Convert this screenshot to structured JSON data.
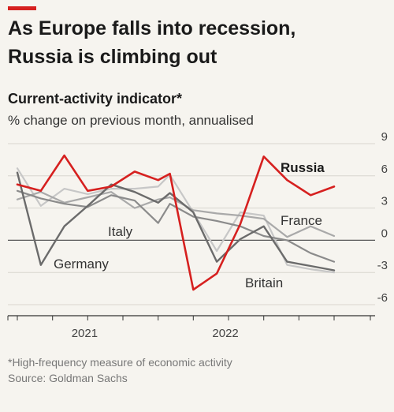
{
  "header": {
    "title_line1": "As Europe falls into recession,",
    "title_line2": "Russia is climbing out",
    "subtitle": "Current-activity indicator*",
    "subtitle2": "% change on previous month, annualised"
  },
  "footer": {
    "footnote": "*High-frequency measure of economic activity",
    "source": "Source: Goldman Sachs"
  },
  "colors": {
    "russia": "#d6201f",
    "germany": "#6b6b6b",
    "italy": "#8b8b8b",
    "france": "#a9a9a9",
    "britain": "#c7c7c7",
    "accent": "#d6201f"
  },
  "chart_data": {
    "type": "line",
    "x": [
      "2020-08",
      "2020-09",
      "2020-10",
      "2020-11",
      "2020-12",
      "2021-01",
      "2021-02",
      "2021-03",
      "2021-04",
      "2021-05",
      "2021-06",
      "2021-07",
      "2021-08",
      "2021-09",
      "2021-10",
      "2021-11",
      "2021-12",
      "2022-01",
      "2022-02",
      "2022-03",
      "2022-04",
      "2022-05",
      "2022-06",
      "2022-07",
      "2022-08",
      "2022-09",
      "2022-10",
      "2022-11"
    ],
    "x_tick_labels": [
      "2021",
      "2022"
    ],
    "y_tick_labels": [
      "9",
      "6",
      "3",
      "0",
      "-3",
      "-6"
    ],
    "ylim": [
      -6,
      9
    ],
    "series": [
      {
        "name": "Russia",
        "values": [
          5.2,
          null,
          4.6,
          null,
          7.9,
          null,
          4.6,
          null,
          5.0,
          null,
          6.4,
          null,
          5.6,
          6.2,
          null,
          -4.6,
          null,
          -3.1,
          null,
          1.5,
          null,
          7.8,
          null,
          5.6,
          null,
          4.2,
          null,
          5.0
        ]
      },
      {
        "name": "Germany",
        "values": [
          6.3,
          null,
          -2.3,
          null,
          1.3,
          null,
          3.2,
          null,
          5.2,
          null,
          4.5,
          null,
          3.5,
          4.4,
          null,
          2.6,
          null,
          -2.0,
          null,
          0.1,
          null,
          1.3,
          null,
          -2.0,
          null,
          -2.4,
          null,
          -2.8
        ]
      },
      {
        "name": "Italy",
        "values": [
          4.6,
          null,
          3.9,
          null,
          3.4,
          null,
          3.1,
          null,
          4.2,
          null,
          3.7,
          null,
          1.6,
          3.4,
          null,
          2.2,
          null,
          1.8,
          null,
          1.3,
          null,
          0.4,
          null,
          0.0,
          null,
          -1.2,
          null,
          -2.0
        ]
      },
      {
        "name": "France",
        "values": [
          3.8,
          null,
          4.5,
          null,
          3.5,
          null,
          4.0,
          null,
          4.5,
          null,
          3.0,
          null,
          3.8,
          4.0,
          null,
          2.8,
          null,
          2.5,
          null,
          2.3,
          null,
          2.0,
          null,
          0.3,
          null,
          1.3,
          null,
          0.4
        ]
      },
      {
        "name": "Britain",
        "values": [
          6.7,
          null,
          3.2,
          null,
          4.8,
          null,
          4.3,
          null,
          4.8,
          null,
          4.8,
          null,
          5.0,
          6.1,
          null,
          2.6,
          null,
          -1.0,
          null,
          2.6,
          null,
          2.3,
          null,
          -2.3,
          null,
          -2.7,
          null,
          -3.0
        ]
      }
    ]
  }
}
